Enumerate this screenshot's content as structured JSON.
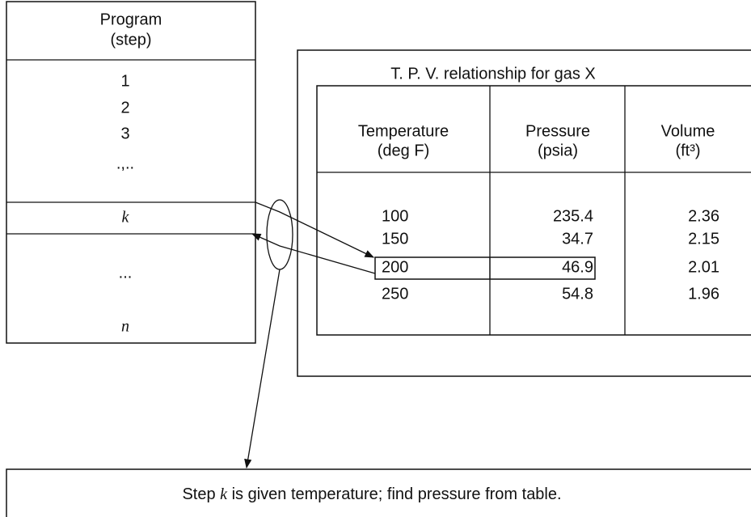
{
  "program": {
    "title_lines": [
      "Program",
      "(step)"
    ],
    "steps": [
      "1",
      "2",
      "3",
      ".,..",
      "k",
      "...",
      "n"
    ]
  },
  "table": {
    "title": "T. P. V. relationship for gas X",
    "headers": [
      [
        "Temperature",
        "(deg F)"
      ],
      [
        "Pressure",
        "(psia)"
      ],
      [
        "Volume",
        "(ft³)"
      ]
    ],
    "rows": [
      [
        100,
        235.4,
        2.36
      ],
      [
        150,
        34.7,
        2.15
      ],
      [
        200,
        46.9,
        2.01
      ],
      [
        250,
        54.8,
        1.96
      ]
    ]
  },
  "caption": [
    "Step ",
    "k",
    " is given temperature; find pressure from table."
  ]
}
